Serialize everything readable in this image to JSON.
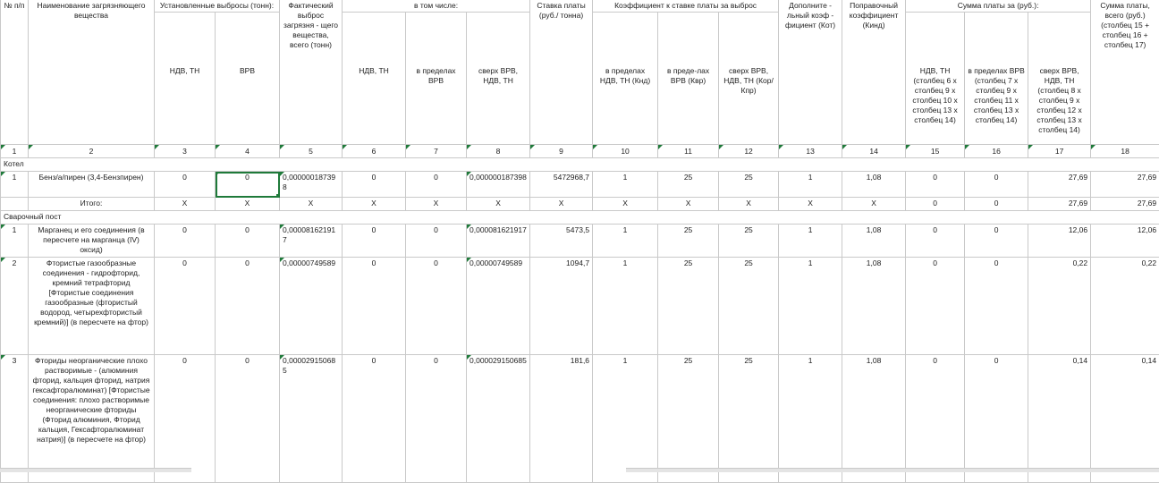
{
  "header": {
    "num": "№ п/п",
    "substance": "Наименование загрязняющего вещества",
    "established": "Установленные выбросы (тонн):",
    "established_ndv": "НДВ, ТН",
    "established_vrv": "ВРВ",
    "actual": "Фактический выброс загрязня - щего вещества, всего (тонн)",
    "including": "в том числе:",
    "incl_ndv": "НДВ, ТН",
    "incl_vrv": "в пределах ВРВ",
    "incl_over": "сверх ВРВ, НДВ, ТН",
    "rate": "Ставка платы (руб./ тонна)",
    "coef": "Коэффициент к ставке платы за выброс",
    "coef_knd": "в пределах НДВ, ТН (Кнд)",
    "coef_kvr": "в преде-лах ВРВ (Квр)",
    "coef_kor": "сверх ВРВ, НДВ, ТН (Кор/Кпр)",
    "additional": "Дополните - льный коэф - фициент (Кот)",
    "correction": "Поправочный коэффициент (Кинд)",
    "sum": "Сумма платы за (руб.):",
    "sum_ndv": "НДВ, ТН (столбец 6 х столбец 9 х столбец 10 х столбец 13 х столбец 14)",
    "sum_vrv": "в пределах ВРВ (столбец 7 х столбец 9 х столбец 11 х столбец 13 х столбец 14)",
    "sum_over": "сверх ВРВ, НДВ, ТН (столбец 8 х столбец 9 х столбец 12 х столбец 13 х столбец 14)",
    "total": "Сумма платы, всего (руб.) (столбец 15 + столбец 16 + столбец 17)"
  },
  "col_numbers": [
    "1",
    "2",
    "3",
    "4",
    "5",
    "6",
    "7",
    "8",
    "9",
    "10",
    "11",
    "12",
    "13",
    "14",
    "15",
    "16",
    "17",
    "18"
  ],
  "section_kotel": "Котел",
  "row1": {
    "n": "1",
    "name": "Бенз/а/пирен (3,4-Бензпирен)",
    "c3": "0",
    "c4": "0",
    "c5": "0,000000187398",
    "c6": "0",
    "c7": "0",
    "c8": "0,000000187398",
    "c9": "5472968,7",
    "c10": "1",
    "c11": "25",
    "c12": "25",
    "c13": "1",
    "c14": "1,08",
    "c15": "0",
    "c16": "0",
    "c17": "27,69",
    "c18": "27,69"
  },
  "itogo": {
    "label": "Итого:",
    "x": "X",
    "c15": "0",
    "c16": "0",
    "c17": "27,69",
    "c18": "27,69"
  },
  "section_weld": "Сварочный пост",
  "row2": {
    "n": "1",
    "name": "Марганец и его соединения (в пересчете на марганца (IV) оксид)",
    "c3": "0",
    "c4": "0",
    "c5": "0,000081621917",
    "c6": "0",
    "c7": "0",
    "c8": "0,000081621917",
    "c9": "5473,5",
    "c10": "1",
    "c11": "25",
    "c12": "25",
    "c13": "1",
    "c14": "1,08",
    "c15": "0",
    "c16": "0",
    "c17": "12,06",
    "c18": "12,06"
  },
  "row3": {
    "n": "2",
    "name": "Фтористые газообразные соединения - гидрофторид, кремний тетрафторид [Фтористые соединения газообразные (фтористый водород, четырехфтористый кремний)] (в пересчете на фтор)",
    "c3": "0",
    "c4": "0",
    "c5": "0,00000749589",
    "c6": "0",
    "c7": "0",
    "c8": "0,00000749589",
    "c9": "1094,7",
    "c10": "1",
    "c11": "25",
    "c12": "25",
    "c13": "1",
    "c14": "1,08",
    "c15": "0",
    "c16": "0",
    "c17": "0,22",
    "c18": "0,22"
  },
  "row4": {
    "n": "3",
    "name": "Фториды неорганические плохо растворимые - (алюминия фторид, кальция фторид, натрия гексафторалюминат) [Фтористые соединения: плохо растворимые неорганические фториды (Фторид алюминия, Фторид кальция, Гексафторалюминат натрия)] (в пересчете на фтор)",
    "c3": "0",
    "c4": "0",
    "c5": "0,000029150685",
    "c6": "0",
    "c7": "0",
    "c8": "0,000029150685",
    "c9": "181,6",
    "c10": "1",
    "c11": "25",
    "c12": "25",
    "c13": "1",
    "c14": "1,08",
    "c15": "0",
    "c16": "0",
    "c17": "0,14",
    "c18": "0,14"
  }
}
